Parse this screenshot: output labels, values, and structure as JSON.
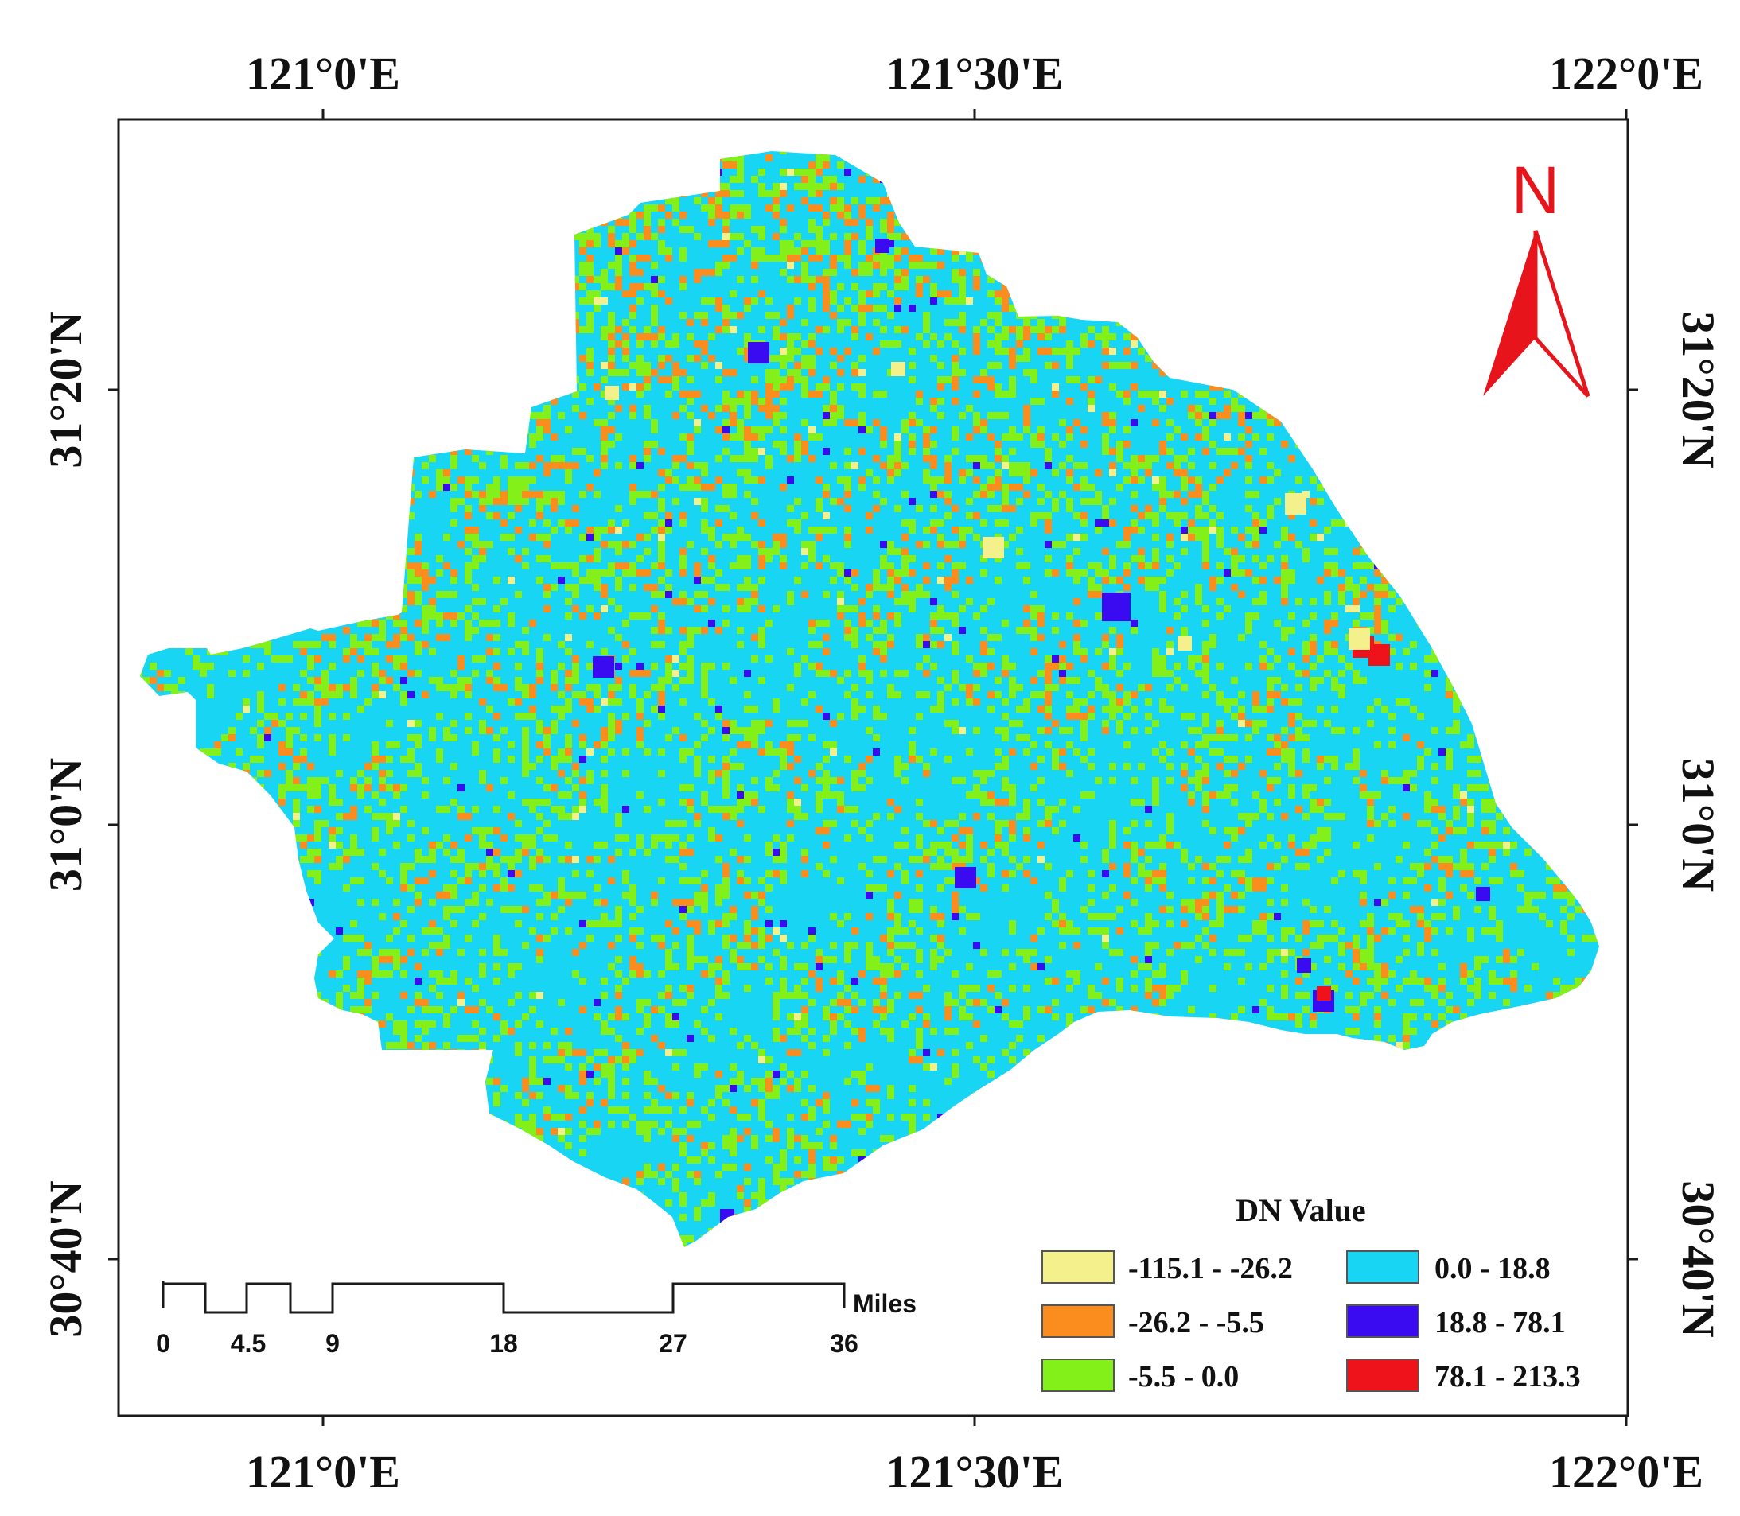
{
  "axes": {
    "top_ticks": [
      "121°0'E",
      "121°30'E",
      "122°0'E"
    ],
    "bottom_ticks": [
      "121°0'E",
      "121°30'E",
      "122°0'E"
    ],
    "left_ticks": [
      "31°20'N",
      "31°0'N",
      "30°40'N"
    ],
    "right_ticks": [
      "31°20'N",
      "31°0'N",
      "30°40'N"
    ]
  },
  "north_arrow": {
    "label": "N",
    "color": "#e8141b"
  },
  "legend": {
    "title": "DN Value",
    "items": [
      {
        "label": "-115.1 - -26.2",
        "color": "#f4f08c"
      },
      {
        "label": "-26.2 - -5.5",
        "color": "#fb8d1e"
      },
      {
        "label": "-5.5 - 0.0",
        "color": "#84f01a"
      },
      {
        "label": "0.0 - 18.8",
        "color": "#18d5f3"
      },
      {
        "label": "18.8 - 78.1",
        "color": "#3a0bf0"
      },
      {
        "label": "78.1 - 213.3",
        "color": "#ee121a"
      }
    ]
  },
  "scale_bar": {
    "unit": "Miles",
    "labels": [
      "0",
      "4.5",
      "9",
      "18",
      "27",
      "36"
    ]
  },
  "raster": {
    "class_colors": [
      "#f4f08c",
      "#fb8d1e",
      "#84f01a",
      "#18d5f3",
      "#3a0bf0",
      "#ee121a"
    ]
  }
}
